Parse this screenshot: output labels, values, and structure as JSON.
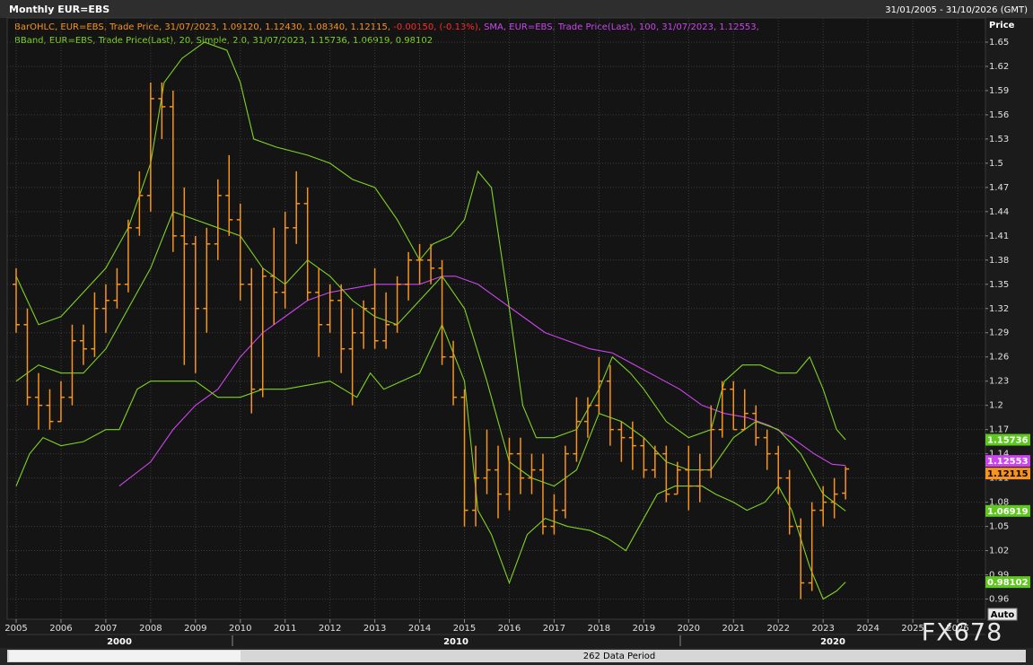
{
  "chart_data": {
    "type": "ohlc",
    "title": "Monthly EUR=EBS",
    "date_range": "31/01/2005 - 31/10/2026 (GMT)",
    "legend": {
      "bar": "BarOHLC, EUR=EBS, Trade Price, 31/07/2023, 1.09120, 1.12430, 1.08340, 1.12115, ",
      "change": "-0.00150, (-0.13%), ",
      "sma": "SMA, EUR=EBS, Trade Price(Last),  100, 31/07/2023, 1.12553,",
      "bband": "BBand, EUR=EBS, Trade Price(Last),  20, Simple, 2.0, 31/07/2023, 1.15736, 1.06919, 0.98102"
    },
    "y_label": "Price",
    "color": "#f7941d",
    "x": [
      2005,
      2005.25,
      2005.5,
      2005.75,
      2006,
      2006.25,
      2006.5,
      2006.75,
      2007,
      2007.25,
      2007.5,
      2007.75,
      2008,
      2008.25,
      2008.5,
      2008.75,
      2009,
      2009.25,
      2009.5,
      2009.75,
      2010,
      2010.25,
      2010.5,
      2010.75,
      2011,
      2011.25,
      2011.5,
      2011.75,
      2012,
      2012.25,
      2012.5,
      2012.75,
      2013,
      2013.25,
      2013.5,
      2013.75,
      2014,
      2014.25,
      2014.5,
      2014.75,
      2015,
      2015.25,
      2015.5,
      2015.75,
      2016,
      2016.25,
      2016.5,
      2016.75,
      2017,
      2017.25,
      2017.5,
      2017.75,
      2018,
      2018.25,
      2018.5,
      2018.75,
      2019,
      2019.25,
      2019.5,
      2019.75,
      2020,
      2020.25,
      2020.5,
      2020.75,
      2021,
      2021.25,
      2021.5,
      2021.75,
      2022,
      2022.25,
      2022.5,
      2022.75,
      2023,
      2023.25,
      2023.5
    ],
    "open": [
      1.35,
      1.3,
      1.21,
      1.2,
      1.18,
      1.21,
      1.28,
      1.27,
      1.32,
      1.33,
      1.35,
      1.42,
      1.46,
      1.58,
      1.57,
      1.41,
      1.4,
      1.32,
      1.4,
      1.46,
      1.43,
      1.35,
      1.22,
      1.36,
      1.34,
      1.42,
      1.45,
      1.34,
      1.3,
      1.33,
      1.27,
      1.29,
      1.32,
      1.28,
      1.3,
      1.35,
      1.38,
      1.38,
      1.37,
      1.26,
      1.21,
      1.07,
      1.11,
      1.12,
      1.09,
      1.14,
      1.11,
      1.12,
      1.05,
      1.07,
      1.14,
      1.18,
      1.2,
      1.23,
      1.17,
      1.16,
      1.15,
      1.12,
      1.14,
      1.09,
      1.12,
      1.1,
      1.12,
      1.17,
      1.22,
      1.17,
      1.19,
      1.16,
      1.14,
      1.11,
      1.05,
      0.98,
      1.07,
      1.08,
      1.0912
    ],
    "high": [
      1.37,
      1.32,
      1.24,
      1.22,
      1.23,
      1.3,
      1.3,
      1.34,
      1.35,
      1.37,
      1.43,
      1.49,
      1.6,
      1.6,
      1.59,
      1.47,
      1.41,
      1.42,
      1.48,
      1.51,
      1.45,
      1.37,
      1.37,
      1.42,
      1.44,
      1.49,
      1.47,
      1.37,
      1.35,
      1.35,
      1.32,
      1.33,
      1.37,
      1.34,
      1.36,
      1.39,
      1.4,
      1.4,
      1.38,
      1.28,
      1.22,
      1.15,
      1.17,
      1.15,
      1.16,
      1.16,
      1.14,
      1.14,
      1.09,
      1.15,
      1.21,
      1.21,
      1.26,
      1.25,
      1.18,
      1.18,
      1.16,
      1.15,
      1.15,
      1.13,
      1.15,
      1.14,
      1.2,
      1.23,
      1.23,
      1.22,
      1.2,
      1.17,
      1.15,
      1.12,
      1.06,
      1.08,
      1.1,
      1.11,
      1.1243
    ],
    "low": [
      1.29,
      1.2,
      1.17,
      1.17,
      1.18,
      1.2,
      1.25,
      1.26,
      1.29,
      1.32,
      1.34,
      1.41,
      1.44,
      1.53,
      1.39,
      1.25,
      1.24,
      1.29,
      1.38,
      1.41,
      1.33,
      1.19,
      1.21,
      1.3,
      1.32,
      1.4,
      1.33,
      1.26,
      1.29,
      1.24,
      1.2,
      1.27,
      1.27,
      1.27,
      1.29,
      1.33,
      1.35,
      1.35,
      1.25,
      1.2,
      1.05,
      1.05,
      1.09,
      1.06,
      1.07,
      1.09,
      1.09,
      1.04,
      1.04,
      1.06,
      1.13,
      1.16,
      1.19,
      1.15,
      1.13,
      1.12,
      1.11,
      1.11,
      1.08,
      1.09,
      1.07,
      1.08,
      1.11,
      1.16,
      1.17,
      1.17,
      1.15,
      1.12,
      1.09,
      1.04,
      0.96,
      0.97,
      1.05,
      1.06,
      1.0834
    ],
    "close": [
      1.3,
      1.21,
      1.2,
      1.18,
      1.21,
      1.28,
      1.27,
      1.32,
      1.33,
      1.35,
      1.42,
      1.46,
      1.58,
      1.57,
      1.41,
      1.4,
      1.32,
      1.4,
      1.46,
      1.43,
      1.35,
      1.22,
      1.36,
      1.34,
      1.42,
      1.45,
      1.34,
      1.3,
      1.33,
      1.27,
      1.29,
      1.32,
      1.28,
      1.3,
      1.35,
      1.38,
      1.38,
      1.37,
      1.26,
      1.21,
      1.07,
      1.11,
      1.12,
      1.09,
      1.14,
      1.11,
      1.12,
      1.05,
      1.07,
      1.14,
      1.18,
      1.2,
      1.23,
      1.17,
      1.16,
      1.15,
      1.12,
      1.14,
      1.09,
      1.12,
      1.1,
      1.12,
      1.17,
      1.22,
      1.17,
      1.19,
      1.16,
      1.14,
      1.11,
      1.05,
      0.98,
      1.07,
      1.08,
      1.09,
      1.12115
    ],
    "lines": [
      {
        "color": "#cc44ee",
        "x": [
          2007.3,
          2008,
          2008.5,
          2009,
          2009.5,
          2010,
          2010.5,
          2011,
          2011.5,
          2012,
          2012.5,
          2013,
          2013.5,
          2014,
          2014.5,
          2014.8,
          2015.3,
          2015.8,
          2016.3,
          2016.8,
          2017.3,
          2017.8,
          2018.3,
          2018.8,
          2019.3,
          2019.8,
          2020.3,
          2020.8,
          2021.3,
          2021.8,
          2022.3,
          2022.8,
          2023.2,
          2023.5
        ],
        "values": [
          1.1,
          1.13,
          1.17,
          1.2,
          1.22,
          1.26,
          1.29,
          1.31,
          1.33,
          1.34,
          1.345,
          1.35,
          1.35,
          1.35,
          1.36,
          1.36,
          1.35,
          1.33,
          1.31,
          1.29,
          1.28,
          1.27,
          1.265,
          1.25,
          1.235,
          1.22,
          1.2,
          1.19,
          1.185,
          1.175,
          1.16,
          1.14,
          1.127,
          1.12553
        ]
      },
      {
        "color": "#7fd321",
        "x": [
          2005,
          2005.5,
          2006,
          2006.5,
          2007,
          2007.5,
          2008,
          2008.3,
          2008.7,
          2009.2,
          2009.7,
          2010,
          2010.3,
          2010.8,
          2011.5,
          2012,
          2012.5,
          2013,
          2013.5,
          2014,
          2014.3,
          2014.7,
          2015,
          2015.3,
          2015.6,
          2016,
          2016.3,
          2016.6,
          2017,
          2017.5,
          2018,
          2018.3,
          2018.7,
          2019,
          2019.5,
          2020,
          2020.5,
          2020.8,
          2021.2,
          2021.6,
          2022,
          2022.4,
          2022.7,
          2023,
          2023.3,
          2023.5
        ],
        "values": [
          1.36,
          1.3,
          1.31,
          1.34,
          1.37,
          1.42,
          1.5,
          1.6,
          1.63,
          1.65,
          1.64,
          1.6,
          1.53,
          1.52,
          1.51,
          1.5,
          1.48,
          1.47,
          1.43,
          1.38,
          1.4,
          1.41,
          1.43,
          1.49,
          1.47,
          1.32,
          1.2,
          1.16,
          1.16,
          1.17,
          1.22,
          1.26,
          1.24,
          1.22,
          1.18,
          1.16,
          1.17,
          1.23,
          1.25,
          1.25,
          1.24,
          1.24,
          1.26,
          1.22,
          1.17,
          1.15736
        ]
      },
      {
        "color": "#7fd321",
        "x": [
          2005,
          2005.5,
          2006,
          2006.5,
          2007,
          2007.5,
          2008,
          2008.5,
          2009,
          2009.5,
          2010,
          2010.5,
          2011,
          2011.5,
          2012,
          2012.5,
          2013,
          2013.5,
          2014,
          2014.5,
          2015,
          2015.5,
          2016,
          2016.5,
          2017,
          2017.5,
          2018,
          2018.5,
          2019,
          2019.5,
          2020,
          2020.5,
          2021,
          2021.5,
          2022,
          2022.5,
          2023,
          2023.5
        ],
        "values": [
          1.23,
          1.25,
          1.24,
          1.24,
          1.27,
          1.32,
          1.37,
          1.44,
          1.43,
          1.42,
          1.41,
          1.37,
          1.35,
          1.38,
          1.36,
          1.33,
          1.31,
          1.3,
          1.33,
          1.36,
          1.32,
          1.23,
          1.13,
          1.11,
          1.1,
          1.12,
          1.19,
          1.18,
          1.16,
          1.13,
          1.12,
          1.12,
          1.16,
          1.18,
          1.17,
          1.14,
          1.09,
          1.06919
        ]
      },
      {
        "color": "#7fd321",
        "x": [
          2005,
          2005.3,
          2005.6,
          2006,
          2006.5,
          2007,
          2007.3,
          2007.7,
          2008,
          2008.5,
          2009,
          2009.5,
          2010,
          2010.5,
          2011,
          2011.5,
          2012,
          2012.3,
          2012.6,
          2012.9,
          2013.2,
          2013.6,
          2014,
          2014.5,
          2015,
          2015.3,
          2015.6,
          2016,
          2016.4,
          2016.8,
          2017.3,
          2017.8,
          2018.2,
          2018.6,
          2018.9,
          2019.3,
          2019.7,
          2020,
          2020.3,
          2020.6,
          2021,
          2021.3,
          2021.7,
          2022,
          2022.3,
          2022.7,
          2023,
          2023.3,
          2023.5
        ],
        "values": [
          1.1,
          1.14,
          1.16,
          1.15,
          1.155,
          1.17,
          1.17,
          1.22,
          1.23,
          1.23,
          1.23,
          1.21,
          1.21,
          1.22,
          1.22,
          1.225,
          1.23,
          1.22,
          1.21,
          1.24,
          1.22,
          1.23,
          1.24,
          1.3,
          1.23,
          1.07,
          1.04,
          0.98,
          1.04,
          1.06,
          1.05,
          1.045,
          1.035,
          1.02,
          1.05,
          1.09,
          1.1,
          1.1,
          1.1,
          1.09,
          1.08,
          1.07,
          1.08,
          1.1,
          1.07,
          1.0,
          0.96,
          0.97,
          0.98102
        ]
      }
    ],
    "tags": [
      1.15736,
      1.12553,
      1.12115,
      1.06919,
      0.98102
    ],
    "tag_colors": [
      "#5ec81e",
      "#cc44ee",
      "#f7941d",
      "#5ec81e",
      "#5ec81e"
    ],
    "tag_text_colors": [
      "#ffffff",
      "#ffffff",
      "#000000",
      "#ffffff",
      "#ffffff"
    ],
    "xlim": [
      2004.8,
      2026.62
    ],
    "ylim": [
      0.935,
      1.68
    ],
    "xticks": [
      2005,
      2006,
      2007,
      2008,
      2009,
      2010,
      2011,
      2012,
      2013,
      2014,
      2015,
      2016,
      2017,
      2018,
      2019,
      2020,
      2021,
      2022,
      2023,
      2024,
      2025,
      2026
    ],
    "yticks": [
      1.65,
      1.62,
      1.59,
      1.56,
      1.53,
      1.5,
      1.47,
      1.44,
      1.41,
      1.38,
      1.35,
      1.32,
      1.29,
      1.26,
      1.23,
      1.2,
      1.17,
      1.14,
      1.11,
      1.08,
      1.05,
      1.02,
      0.99,
      0.96
    ],
    "decades": [
      "2000",
      "2010",
      "2020"
    ],
    "grid": true,
    "auto_button": "Auto",
    "data_period": "262 Data Period",
    "watermark": "FX678"
  }
}
